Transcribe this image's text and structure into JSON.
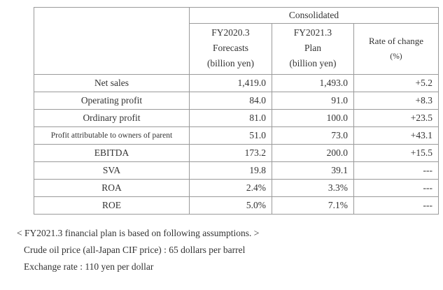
{
  "table": {
    "group_header": "Consolidated",
    "columns": [
      {
        "lines": [
          "FY2020.3",
          "Forecasts",
          "(billion yen)"
        ]
      },
      {
        "lines": [
          "FY2021.3",
          "Plan",
          "(billion yen)"
        ]
      },
      {
        "lines": [
          "Rate of change",
          "(%)"
        ]
      }
    ],
    "rows": [
      {
        "label": "Net sales",
        "fy2020": "1,419.0",
        "fy2021": "1,493.0",
        "change": "+5.2"
      },
      {
        "label": "Operating profit",
        "fy2020": "84.0",
        "fy2021": "91.0",
        "change": "+8.3"
      },
      {
        "label": "Ordinary profit",
        "fy2020": "81.0",
        "fy2021": "100.0",
        "change": "+23.5"
      },
      {
        "label": "Profit attributable to owners of parent",
        "fy2020": "51.0",
        "fy2021": "73.0",
        "change": "+43.1"
      },
      {
        "label": "EBITDA",
        "fy2020": "173.2",
        "fy2021": "200.0",
        "change": "+15.5"
      },
      {
        "label": "SVA",
        "fy2020": "19.8",
        "fy2021": "39.1",
        "change": "---"
      },
      {
        "label": "ROA",
        "fy2020": "2.4%",
        "fy2021": "3.3%",
        "change": "---"
      },
      {
        "label": "ROE",
        "fy2020": "5.0%",
        "fy2021": "7.1%",
        "change": "---"
      }
    ]
  },
  "notes": {
    "heading": "< FY2021.3 financial plan is based on following assumptions. >",
    "lines": [
      "Crude oil price (all-Japan CIF price) : 65 dollars per barrel",
      "Exchange rate : 110 yen per dollar"
    ]
  }
}
